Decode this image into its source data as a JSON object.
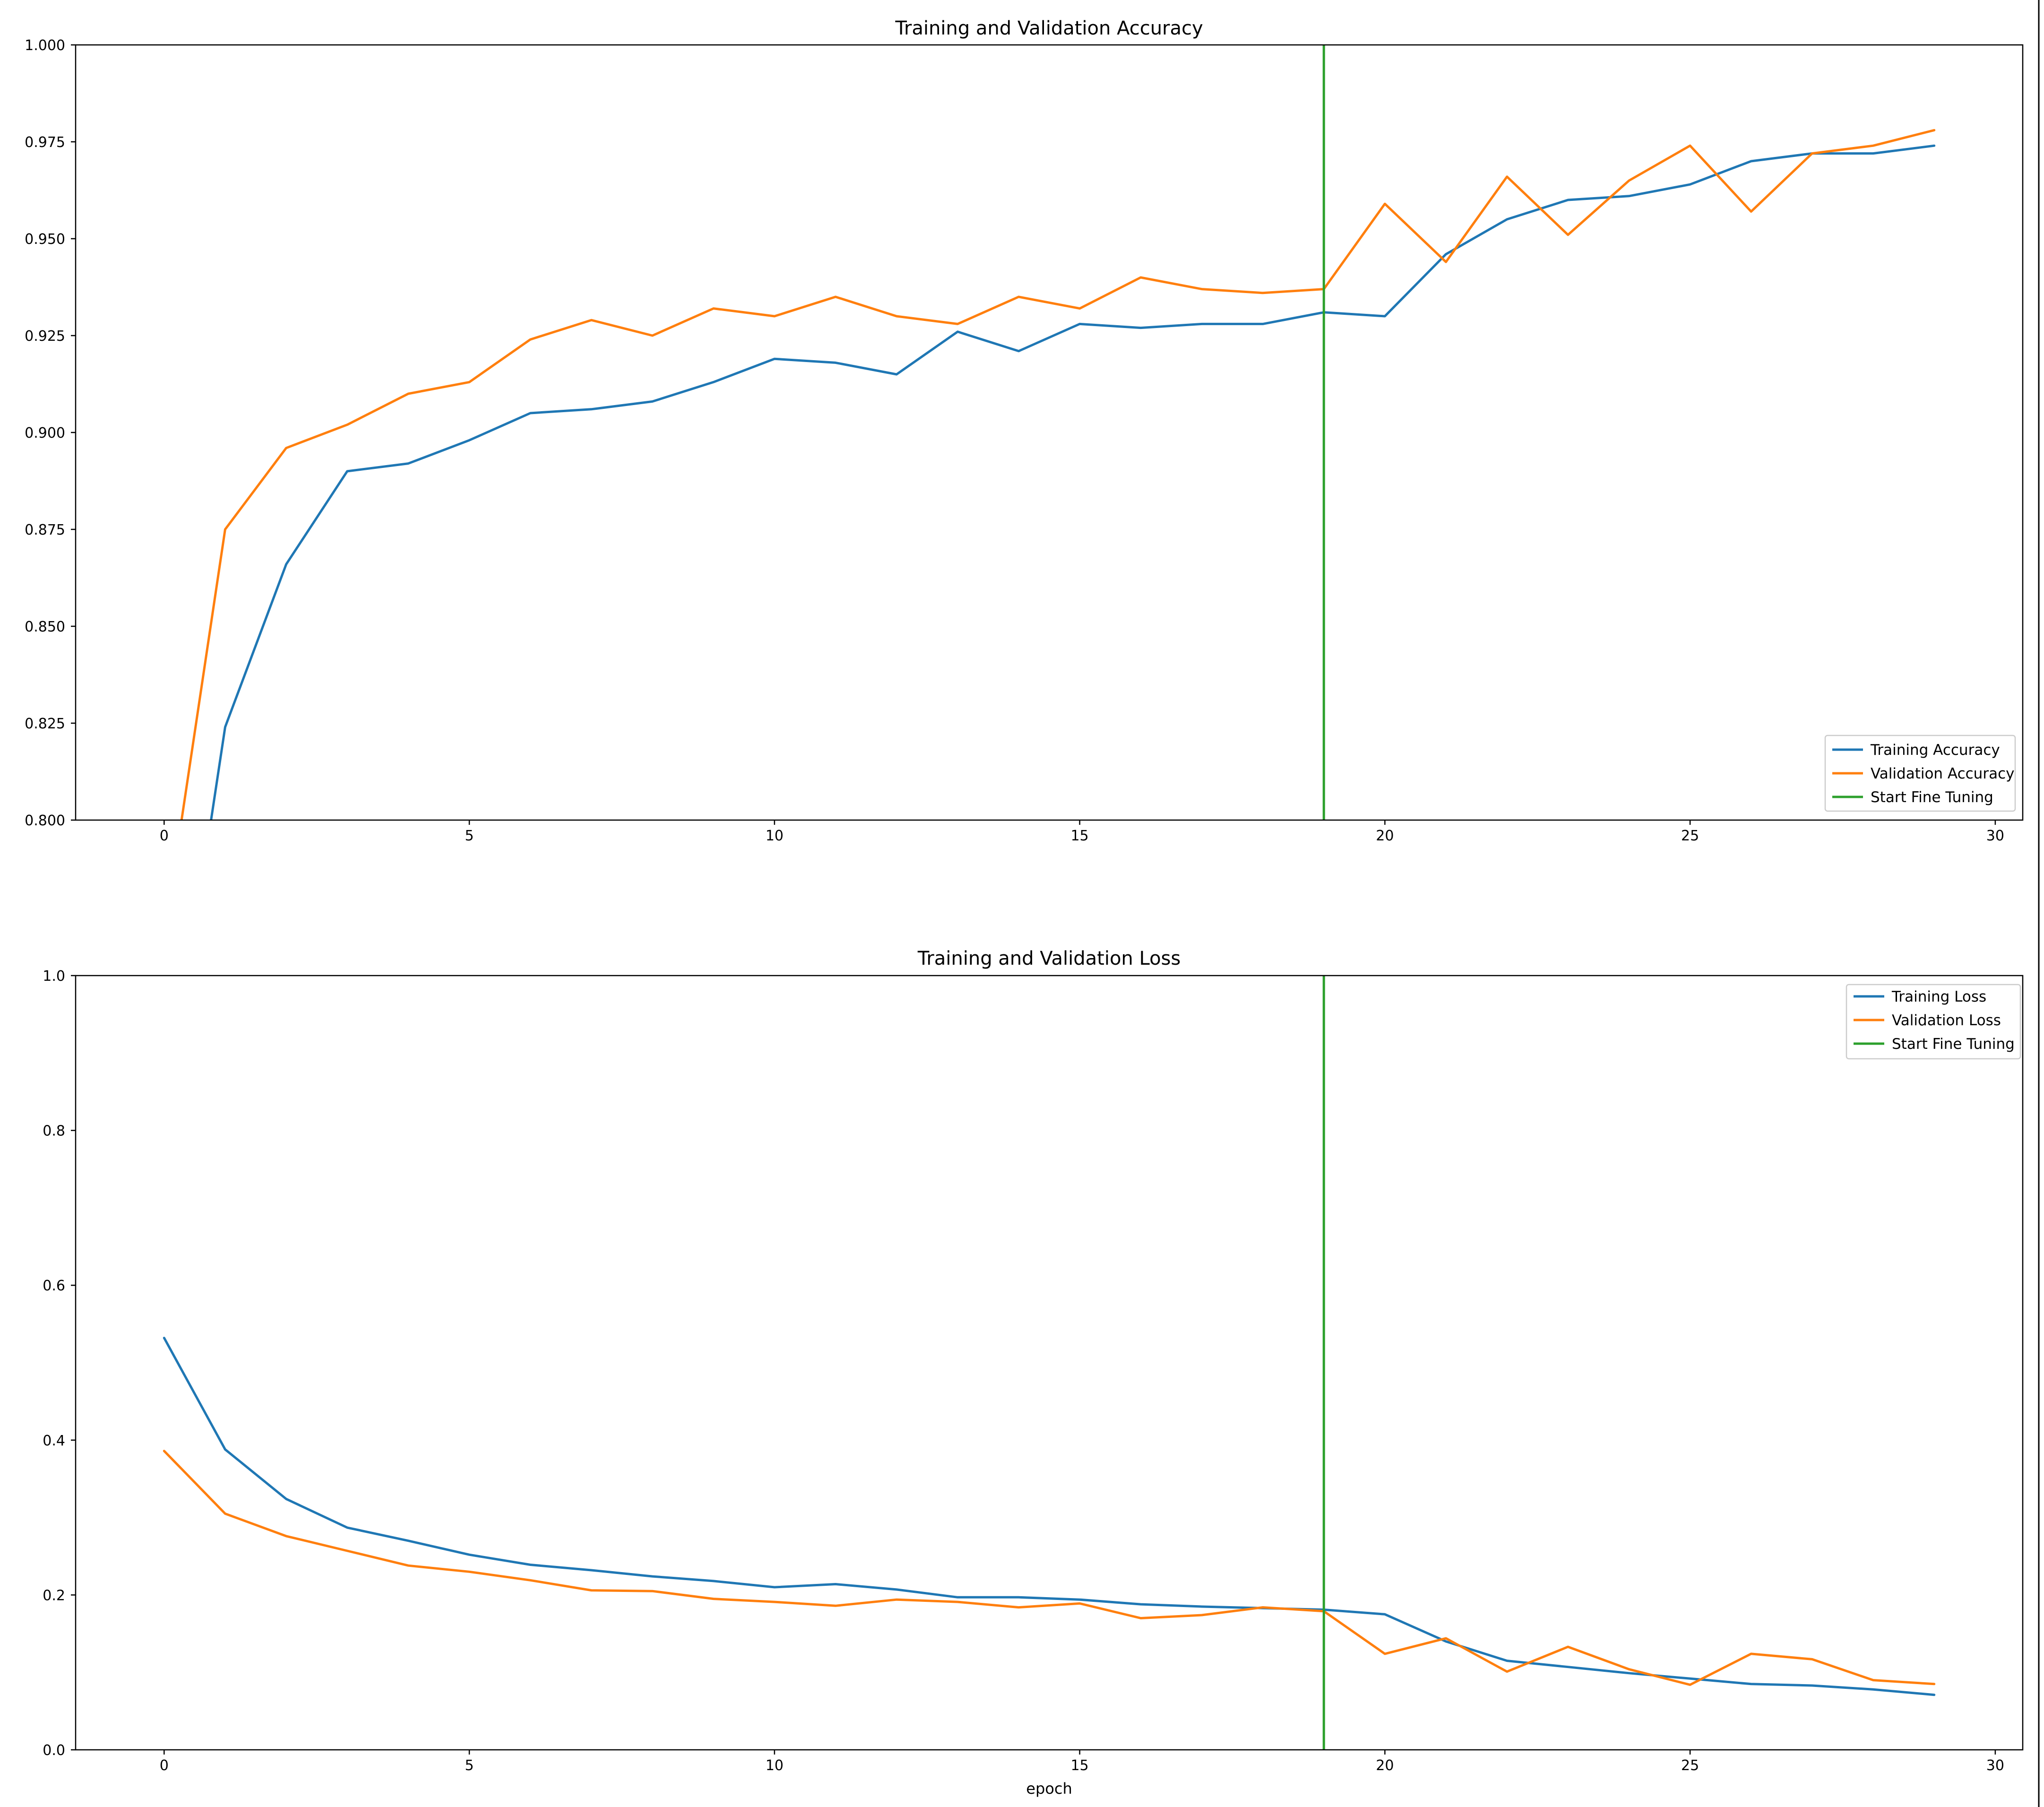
{
  "chart_data": [
    {
      "type": "line",
      "title": "Training and Validation Accuracy",
      "xlabel": "",
      "ylabel": "",
      "xlim": [
        -1.45,
        30.45
      ],
      "ylim": [
        0.8,
        1.0
      ],
      "xticks": [
        0,
        5,
        10,
        15,
        20,
        25,
        30
      ],
      "xtick_labels": [
        "0",
        "5",
        "10",
        "15",
        "20",
        "25",
        "30"
      ],
      "yticks": [
        0.8,
        0.825,
        0.85,
        0.875,
        0.9,
        0.925,
        0.95,
        0.975,
        1.0
      ],
      "ytick_labels": [
        "0.800",
        "0.825",
        "0.850",
        "0.875",
        "0.900",
        "0.925",
        "0.950",
        "0.975",
        "1.000"
      ],
      "grid": false,
      "legend_position": "lower-right",
      "x": [
        0,
        1,
        2,
        3,
        4,
        5,
        6,
        7,
        8,
        9,
        10,
        11,
        12,
        13,
        14,
        15,
        16,
        17,
        18,
        19,
        20,
        21,
        22,
        23,
        24,
        25,
        26,
        27,
        28,
        29
      ],
      "series": [
        {
          "name": "Training Accuracy",
          "color": "#1f77b4",
          "values": [
            0.72,
            0.824,
            0.866,
            0.89,
            0.892,
            0.898,
            0.905,
            0.906,
            0.908,
            0.913,
            0.919,
            0.918,
            0.915,
            0.926,
            0.921,
            0.928,
            0.927,
            0.928,
            0.928,
            0.931,
            0.93,
            0.946,
            0.955,
            0.96,
            0.961,
            0.964,
            0.97,
            0.972,
            0.972,
            0.974
          ]
        },
        {
          "name": "Validation Accuracy",
          "color": "#ff7f0e",
          "values": [
            0.77,
            0.875,
            0.896,
            0.902,
            0.91,
            0.913,
            0.924,
            0.929,
            0.925,
            0.932,
            0.93,
            0.935,
            0.93,
            0.928,
            0.935,
            0.932,
            0.94,
            0.937,
            0.936,
            0.937,
            0.959,
            0.944,
            0.966,
            0.951,
            0.965,
            0.974,
            0.957,
            0.972,
            0.974,
            0.978
          ]
        }
      ],
      "vlines": [
        {
          "name": "Start Fine Tuning",
          "x": 19,
          "color": "#2ca02c"
        }
      ]
    },
    {
      "type": "line",
      "title": "Training and Validation Loss",
      "xlabel": "epoch",
      "ylabel": "",
      "xlim": [
        -1.45,
        30.45
      ],
      "ylim": [
        0.0,
        1.0
      ],
      "xticks": [
        0,
        5,
        10,
        15,
        20,
        25,
        30
      ],
      "xtick_labels": [
        "0",
        "5",
        "10",
        "15",
        "20",
        "25",
        "30"
      ],
      "yticks": [
        0.0,
        0.2,
        0.4,
        0.6,
        0.8,
        1.0
      ],
      "ytick_labels": [
        "0.0",
        "0.2",
        "0.4",
        "0.6",
        "0.8",
        "1.0"
      ],
      "grid": false,
      "legend_position": "upper-right",
      "x": [
        0,
        1,
        2,
        3,
        4,
        5,
        6,
        7,
        8,
        9,
        10,
        11,
        12,
        13,
        14,
        15,
        16,
        17,
        18,
        19,
        20,
        21,
        22,
        23,
        24,
        25,
        26,
        27,
        28,
        29
      ],
      "series": [
        {
          "name": "Training Loss",
          "color": "#1f77b4",
          "values": [
            0.532,
            0.388,
            0.324,
            0.287,
            0.27,
            0.252,
            0.239,
            0.232,
            0.224,
            0.218,
            0.21,
            0.214,
            0.207,
            0.197,
            0.197,
            0.194,
            0.188,
            0.185,
            0.183,
            0.181,
            0.175,
            0.14,
            0.115,
            0.107,
            0.099,
            0.092,
            0.085,
            0.083,
            0.078,
            0.071
          ]
        },
        {
          "name": "Validation Loss",
          "color": "#ff7f0e",
          "values": [
            0.386,
            0.305,
            0.276,
            0.257,
            0.238,
            0.23,
            0.219,
            0.206,
            0.205,
            0.195,
            0.191,
            0.186,
            0.194,
            0.191,
            0.184,
            0.189,
            0.17,
            0.174,
            0.184,
            0.179,
            0.124,
            0.144,
            0.101,
            0.133,
            0.104,
            0.084,
            0.124,
            0.117,
            0.09,
            0.085
          ]
        }
      ],
      "vlines": [
        {
          "name": "Start Fine Tuning",
          "x": 19,
          "color": "#2ca02c"
        }
      ]
    }
  ]
}
